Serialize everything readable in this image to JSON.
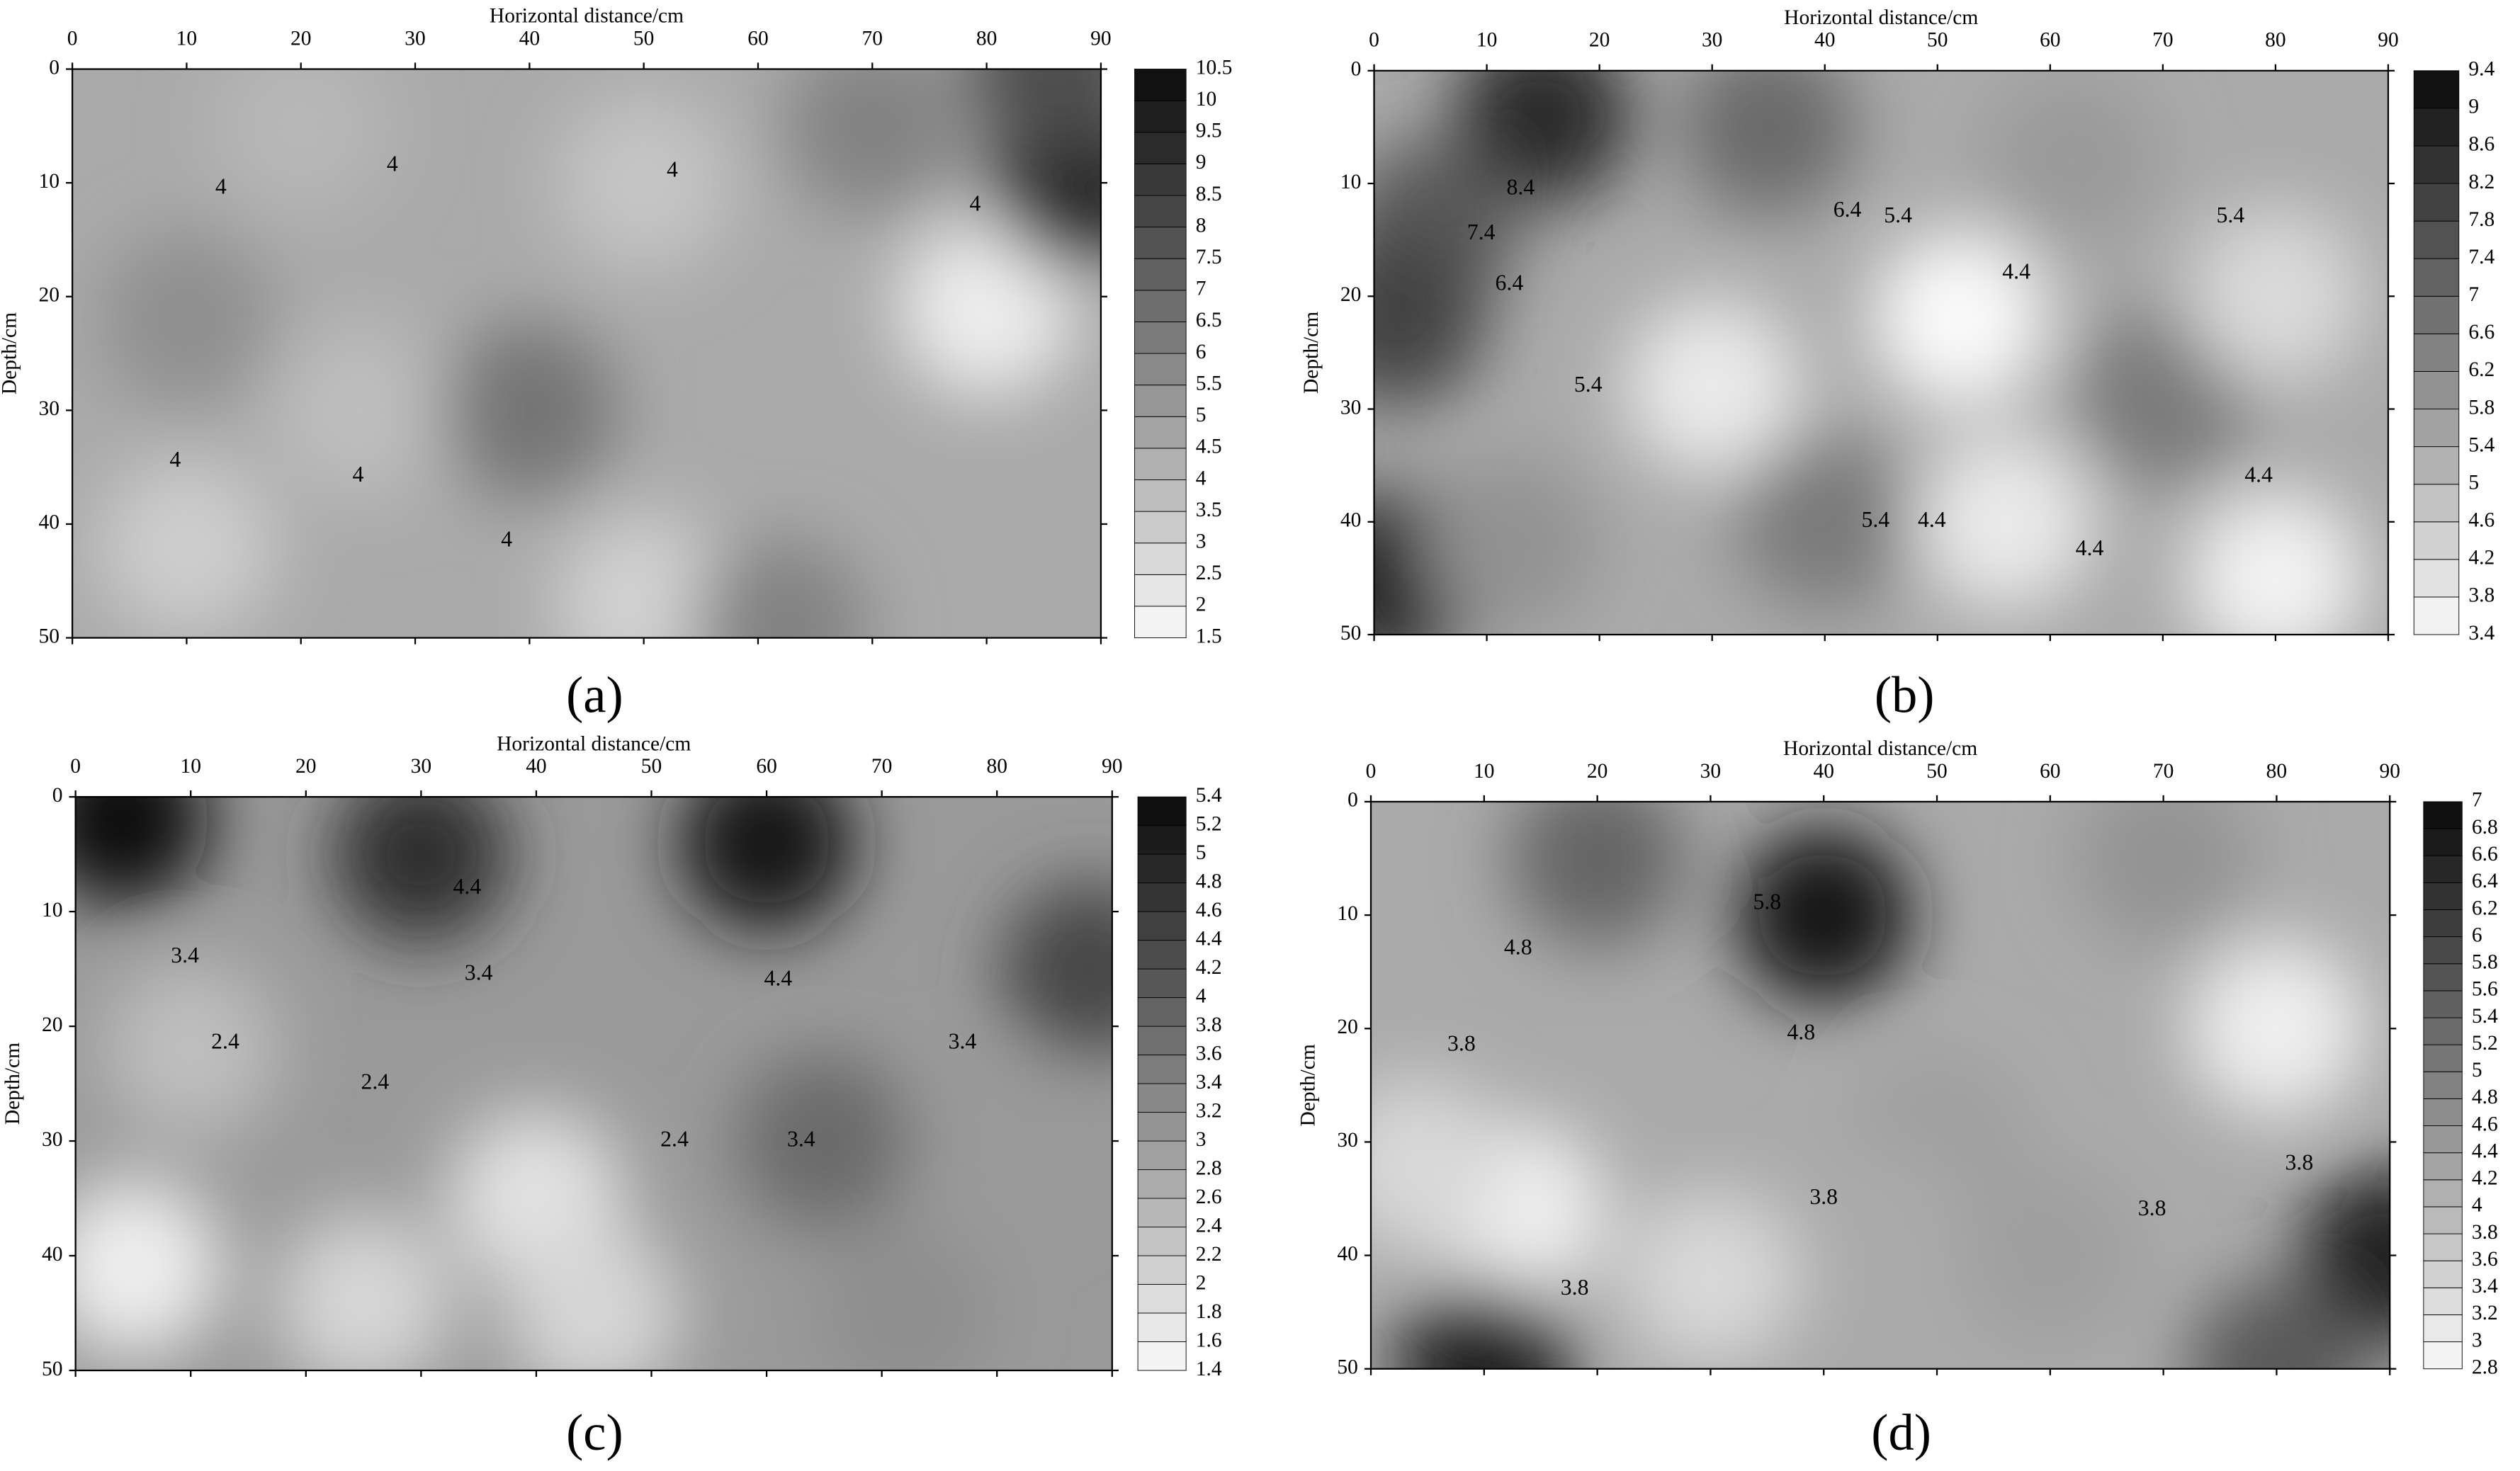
{
  "chart_data": [
    {
      "type": "contour",
      "panel_label": "(a)",
      "xlabel": "Horizontal distance/cm",
      "ylabel": "Depth/cm",
      "xlim": [
        0,
        90
      ],
      "ylim": [
        0,
        50
      ],
      "xticks": [
        0,
        10,
        20,
        30,
        40,
        50,
        60,
        70,
        80,
        90
      ],
      "yticks": [
        0,
        10,
        20,
        30,
        40,
        50
      ],
      "colorbar_ticks": [
        1.5,
        2,
        2.5,
        3,
        3.5,
        4,
        4.5,
        5,
        5.5,
        6,
        6.5,
        7,
        7.5,
        8,
        8.5,
        9,
        9.5,
        10,
        10.5
      ],
      "base_value": 4.5,
      "points": [
        {
          "x": 10,
          "y": 22,
          "value": 5.5
        },
        {
          "x": 40,
          "y": 30,
          "value": 6.5
        },
        {
          "x": 50,
          "y": 10,
          "value": 3.5
        },
        {
          "x": 80,
          "y": 21,
          "value": 2
        },
        {
          "x": 88,
          "y": 10,
          "value": 9.5
        },
        {
          "x": 86,
          "y": 0,
          "value": 8
        },
        {
          "x": 10,
          "y": 42,
          "value": 3.2
        },
        {
          "x": 50,
          "y": 47,
          "value": 3
        },
        {
          "x": 62,
          "y": 49,
          "value": 6
        },
        {
          "x": 70,
          "y": 5,
          "value": 6
        },
        {
          "x": 25,
          "y": 30,
          "value": 3.8
        },
        {
          "x": 20,
          "y": 5,
          "value": 4
        }
      ],
      "contour_labels": [
        {
          "x": 13,
          "y": 10.5,
          "label": "4"
        },
        {
          "x": 28,
          "y": 8.5,
          "label": "4"
        },
        {
          "x": 52.5,
          "y": 9,
          "label": "4"
        },
        {
          "x": 79,
          "y": 12,
          "label": "4"
        },
        {
          "x": 9,
          "y": 34.5,
          "label": "4"
        },
        {
          "x": 25,
          "y": 35.8,
          "label": "4"
        },
        {
          "x": 38,
          "y": 41.5,
          "label": "4"
        }
      ]
    },
    {
      "type": "contour",
      "panel_label": "(b)",
      "xlabel": "Horizontal distance/cm",
      "ylabel": "Depth/cm",
      "xlim": [
        0,
        90
      ],
      "ylim": [
        0,
        50
      ],
      "xticks": [
        0,
        10,
        20,
        30,
        40,
        50,
        60,
        70,
        80,
        90
      ],
      "yticks": [
        0,
        10,
        20,
        30,
        40,
        50
      ],
      "colorbar_ticks": [
        3.4,
        3.8,
        4.2,
        4.6,
        5,
        5.4,
        5.8,
        6.2,
        6.6,
        7,
        7.4,
        7.8,
        8.2,
        8.6,
        9,
        9.4
      ],
      "base_value": 5.4,
      "points": [
        {
          "x": 15,
          "y": 4,
          "value": 8.6
        },
        {
          "x": 5,
          "y": 14,
          "value": 7.4
        },
        {
          "x": 2,
          "y": 45,
          "value": 9
        },
        {
          "x": 2,
          "y": 22,
          "value": 8
        },
        {
          "x": 30,
          "y": 28,
          "value": 3.8
        },
        {
          "x": 40,
          "y": 40,
          "value": 6.6
        },
        {
          "x": 52,
          "y": 22,
          "value": 3.4
        },
        {
          "x": 56,
          "y": 40,
          "value": 3.8
        },
        {
          "x": 70,
          "y": 29,
          "value": 6.6
        },
        {
          "x": 80,
          "y": 20,
          "value": 4.2
        },
        {
          "x": 80,
          "y": 45,
          "value": 3.6
        },
        {
          "x": 35,
          "y": 5,
          "value": 7
        },
        {
          "x": 12,
          "y": 42,
          "value": 6
        },
        {
          "x": 62,
          "y": 8,
          "value": 5.8
        }
      ],
      "contour_labels": [
        {
          "x": 13,
          "y": 10.5,
          "label": "8.4"
        },
        {
          "x": 9.5,
          "y": 14.5,
          "label": "7.4"
        },
        {
          "x": 12,
          "y": 19,
          "label": "6.4"
        },
        {
          "x": 19,
          "y": 28,
          "label": "5.4"
        },
        {
          "x": 42,
          "y": 12.5,
          "label": "6.4"
        },
        {
          "x": 46.5,
          "y": 13,
          "label": "5.4"
        },
        {
          "x": 57,
          "y": 18,
          "label": "4.4"
        },
        {
          "x": 76,
          "y": 13,
          "label": "5.4"
        },
        {
          "x": 44.5,
          "y": 40,
          "label": "5.4"
        },
        {
          "x": 49.5,
          "y": 40,
          "label": "4.4"
        },
        {
          "x": 78.5,
          "y": 36,
          "label": "4.4"
        },
        {
          "x": 63.5,
          "y": 42.5,
          "label": "4.4"
        }
      ]
    },
    {
      "type": "contour",
      "panel_label": "(c)",
      "xlabel": "Horizontal distance/cm",
      "ylabel": "Depth/cm",
      "xlim": [
        0,
        90
      ],
      "ylim": [
        0,
        50
      ],
      "xticks": [
        0,
        10,
        20,
        30,
        40,
        50,
        60,
        70,
        80,
        90
      ],
      "yticks": [
        0,
        10,
        20,
        30,
        40,
        50
      ],
      "colorbar_ticks": [
        1.4,
        1.6,
        1.8,
        2,
        2.2,
        2.4,
        2.6,
        2.8,
        3,
        3.2,
        3.4,
        3.6,
        3.8,
        4,
        4.2,
        4.4,
        4.6,
        4.8,
        5,
        5.2,
        5.4
      ],
      "base_value": 3,
      "points": [
        {
          "x": 4,
          "y": 2,
          "value": 5.4
        },
        {
          "x": 30,
          "y": 5,
          "value": 4.8
        },
        {
          "x": 60,
          "y": 4,
          "value": 5.2
        },
        {
          "x": 88,
          "y": 15,
          "value": 4.4
        },
        {
          "x": 10,
          "y": 22,
          "value": 2.4
        },
        {
          "x": 40,
          "y": 35,
          "value": 1.8
        },
        {
          "x": 5,
          "y": 41,
          "value": 1.6
        },
        {
          "x": 80,
          "y": 30,
          "value": 3
        },
        {
          "x": 65,
          "y": 30,
          "value": 3.8
        },
        {
          "x": 25,
          "y": 44,
          "value": 2
        },
        {
          "x": 45,
          "y": 45,
          "value": 2
        },
        {
          "x": 72,
          "y": 45,
          "value": 3.2
        }
      ],
      "contour_labels": [
        {
          "x": 34,
          "y": 8,
          "label": "4.4"
        },
        {
          "x": 9.5,
          "y": 14,
          "label": "3.4"
        },
        {
          "x": 35,
          "y": 15.5,
          "label": "3.4"
        },
        {
          "x": 61,
          "y": 16,
          "label": "4.4"
        },
        {
          "x": 13,
          "y": 21.5,
          "label": "2.4"
        },
        {
          "x": 26,
          "y": 25,
          "label": "2.4"
        },
        {
          "x": 52,
          "y": 30,
          "label": "2.4"
        },
        {
          "x": 63,
          "y": 30,
          "label": "3.4"
        },
        {
          "x": 77,
          "y": 21.5,
          "label": "3.4"
        }
      ]
    },
    {
      "type": "contour",
      "panel_label": "(d)",
      "xlabel": "Horizontal distance/cm",
      "ylabel": "Depth/cm",
      "xlim": [
        0,
        90
      ],
      "ylim": [
        0,
        50
      ],
      "xticks": [
        0,
        10,
        20,
        30,
        40,
        50,
        60,
        70,
        80,
        90
      ],
      "yticks": [
        0,
        10,
        20,
        30,
        40,
        50
      ],
      "colorbar_ticks": [
        2.8,
        3,
        3.2,
        3.4,
        3.6,
        3.8,
        4,
        4.2,
        4.4,
        4.6,
        4.8,
        5,
        5.2,
        5.4,
        5.6,
        5.8,
        6,
        6.2,
        6.4,
        6.6,
        6.8,
        7
      ],
      "base_value": 4.2,
      "points": [
        {
          "x": 40,
          "y": 10,
          "value": 6.8
        },
        {
          "x": 20,
          "y": 5,
          "value": 5.4
        },
        {
          "x": 13,
          "y": 36,
          "value": 3
        },
        {
          "x": 10,
          "y": 50,
          "value": 6.6
        },
        {
          "x": 80,
          "y": 20,
          "value": 3
        },
        {
          "x": 90,
          "y": 40,
          "value": 6.6
        },
        {
          "x": 50,
          "y": 30,
          "value": 4.4
        },
        {
          "x": 80,
          "y": 50,
          "value": 5.6
        },
        {
          "x": 45,
          "y": 38,
          "value": 4.2
        },
        {
          "x": 60,
          "y": 40,
          "value": 4.4
        },
        {
          "x": 4,
          "y": 32,
          "value": 3.4
        },
        {
          "x": 70,
          "y": 5,
          "value": 4.6
        },
        {
          "x": 30,
          "y": 42,
          "value": 3.4
        }
      ],
      "contour_labels": [
        {
          "x": 35,
          "y": 9,
          "label": "5.8"
        },
        {
          "x": 13,
          "y": 13,
          "label": "4.8"
        },
        {
          "x": 38,
          "y": 20.5,
          "label": "4.8"
        },
        {
          "x": 8,
          "y": 21.5,
          "label": "3.8"
        },
        {
          "x": 40,
          "y": 35,
          "label": "3.8"
        },
        {
          "x": 18,
          "y": 43,
          "label": "3.8"
        },
        {
          "x": 69,
          "y": 36,
          "label": "3.8"
        },
        {
          "x": 82,
          "y": 32,
          "label": "3.8"
        }
      ]
    }
  ]
}
